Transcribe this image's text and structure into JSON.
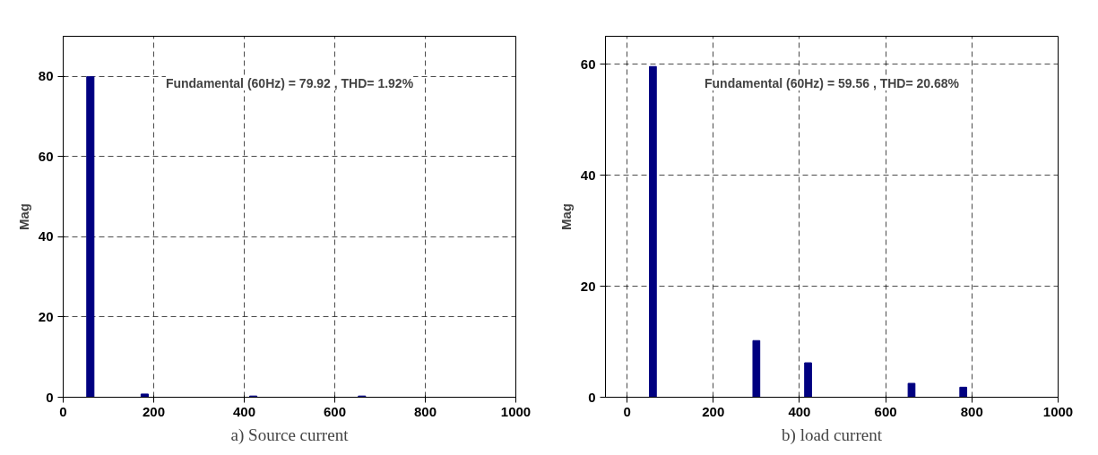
{
  "chart_data": [
    {
      "type": "bar",
      "title": "a) Source current",
      "ylabel": "Mag",
      "x": [
        60,
        180,
        420,
        660
      ],
      "values": [
        79.92,
        0.8,
        0.3,
        0.3
      ],
      "color": "#000080",
      "xlim": [
        0,
        1000
      ],
      "ylim": [
        0,
        90
      ],
      "xticks": [
        0,
        200,
        400,
        600,
        800,
        1000
      ],
      "yticks": [
        0,
        20,
        40,
        60,
        80
      ],
      "grid": true,
      "annotations": [
        "Fundamental (60Hz) = 79.92 , THD= 1.92%"
      ]
    },
    {
      "type": "bar",
      "title": "b) load current",
      "ylabel": "Mag",
      "x": [
        60,
        300,
        420,
        660,
        780
      ],
      "values": [
        59.56,
        10.2,
        6.2,
        2.5,
        1.8
      ],
      "color": "#000080",
      "xlim": [
        -50,
        1000
      ],
      "ylim": [
        0,
        65
      ],
      "xticks": [
        0,
        200,
        400,
        600,
        800,
        1000
      ],
      "yticks": [
        0,
        20,
        40,
        60
      ],
      "grid": true,
      "annotations": [
        "Fundamental (60Hz) = 59.56 , THD= 20.68%"
      ]
    }
  ]
}
